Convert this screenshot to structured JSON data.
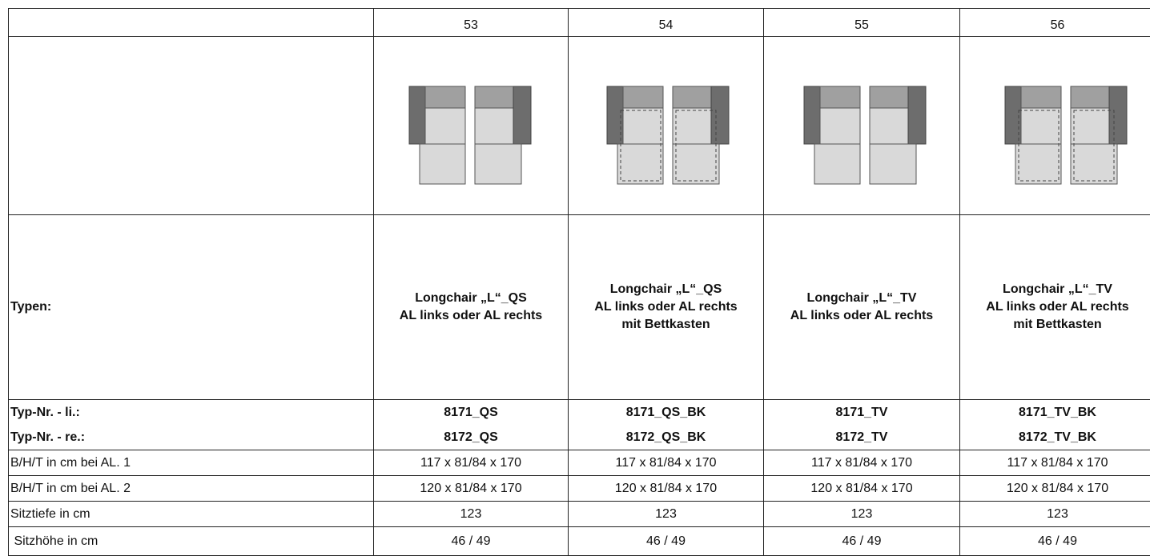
{
  "table": {
    "columns": [
      "53",
      "54",
      "55",
      "56"
    ],
    "types_label": "Typen:",
    "types": [
      [
        "Longchair „L“_QS",
        "AL links oder AL rechts"
      ],
      [
        "Longchair „L“_QS",
        "AL links oder AL rechts",
        "mit Bettkasten"
      ],
      [
        "Longchair „L“_TV",
        "AL links oder AL rechts"
      ],
      [
        "Longchair „L“_TV",
        "AL links oder AL rechts",
        "mit Bettkasten"
      ]
    ],
    "rows": [
      [
        "Typ-Nr. - li.:",
        "8171_QS",
        "8171_QS_BK",
        "8171_TV",
        "8171_TV_BK"
      ],
      [
        "Typ-Nr. - re.:",
        "8172_QS",
        "8172_QS_BK",
        "8172_TV",
        "8172_TV_BK"
      ],
      [
        "B/H/T in cm bei AL. 1",
        "117 x 81/84 x 170",
        "117 x 81/84 x 170",
        "117 x 81/84 x 170",
        "117 x 81/84 x 170"
      ],
      [
        "B/H/T in cm bei AL. 2",
        "120 x 81/84 x 170",
        "120 x 81/84 x 170",
        "120 x 81/84 x 170",
        "120 x 81/84 x 170"
      ],
      [
        "Sitztiefe in cm",
        "123",
        "123",
        "123",
        "123"
      ],
      [
        " Sitzhöhe in cm",
        "46 / 49",
        "46 / 49",
        "46 / 49",
        "46 / 49"
      ]
    ]
  }
}
